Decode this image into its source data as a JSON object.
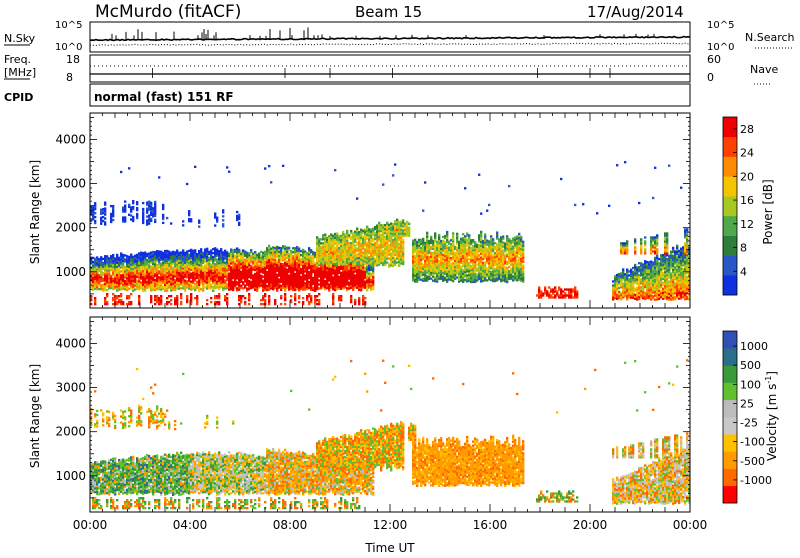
{
  "header": {
    "station": "McMurdo (fitACF)",
    "beam": "Beam 15",
    "date": "17/Aug/2014"
  },
  "noise_panel": {
    "left_label": "N.Sky",
    "right_label": "N.Search",
    "left_ticks": [
      "10^5",
      "10^0"
    ],
    "right_ticks": [
      "10^5",
      "10^0"
    ]
  },
  "freq_panel": {
    "left_label_line1": "Freq.",
    "left_label_line2": "[MHz]",
    "right_label": "Nave",
    "left_ticks": [
      "18",
      "8"
    ],
    "right_ticks": [
      "60",
      "0"
    ]
  },
  "cpid": {
    "label": "CPID",
    "value": "normal (fast) 151 RF"
  },
  "colors": {
    "power_scale": [
      "#1030e0",
      "#2858c8",
      "#2e7d3a",
      "#4fa84a",
      "#a8c820",
      "#f5c400",
      "#ff8c00",
      "#ff4000",
      "#ee0000"
    ],
    "velocity_scale": [
      "#ff0000",
      "#ff6a00",
      "#ff9a00",
      "#ffc000",
      "#c8c8c8",
      "#bcbcbc",
      "#60c030",
      "#3a9a3a",
      "#2a6e8a",
      "#3050b8"
    ]
  },
  "chart_data": [
    {
      "type": "heatmap",
      "name": "power",
      "xlabel": "",
      "ylabel": "Slant Range [km]",
      "x_range_hours": [
        0,
        24
      ],
      "ylim": [
        180,
        4600
      ],
      "y_ticks": [
        "1000",
        "2000",
        "3000",
        "4000"
      ],
      "colorbar_label": "Power [dB]",
      "colorbar_ticks": [
        "4",
        "8",
        "12",
        "16",
        "20",
        "24",
        "28"
      ],
      "colorbar_range": [
        0,
        30
      ]
    },
    {
      "type": "heatmap",
      "name": "velocity",
      "xlabel": "Time UT",
      "ylabel": "Slant Range [km]",
      "x_range_hours": [
        0,
        24
      ],
      "x_ticks": [
        "00:00",
        "04:00",
        "08:00",
        "12:00",
        "16:00",
        "20:00",
        "00:00"
      ],
      "ylim": [
        180,
        4600
      ],
      "y_ticks": [
        "1000",
        "2000",
        "3000",
        "4000"
      ],
      "colorbar_label": "Velocity [m s^-1]",
      "colorbar_ticks": [
        "1000",
        "500",
        "100",
        "25",
        "-25",
        "-100",
        "-500",
        "-1000"
      ]
    }
  ]
}
